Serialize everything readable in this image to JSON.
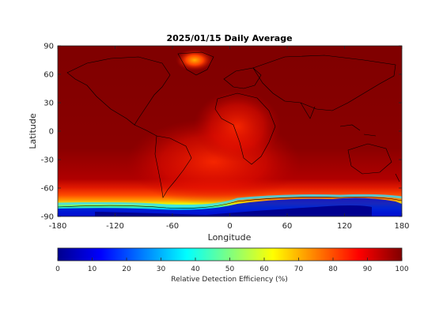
{
  "figure": {
    "title": "2025/01/15 Daily Average",
    "xlabel": "Longitude",
    "ylabel": "Latitude",
    "x_ticks": [
      "-180",
      "-120",
      "-60",
      "0",
      "60",
      "120",
      "180"
    ],
    "y_ticks": [
      "90",
      "60",
      "30",
      "0",
      "-30",
      "-60",
      "-90"
    ]
  },
  "colorbar": {
    "label": "Relative Detection Efficiency (%)",
    "ticks": [
      "0",
      "10",
      "20",
      "30",
      "40",
      "50",
      "60",
      "70",
      "80",
      "90",
      "100"
    ],
    "colormap": "jet"
  },
  "chart_data": {
    "type": "heatmap",
    "title": "2025/01/15 Daily Average",
    "xlabel": "Longitude",
    "ylabel": "Latitude",
    "xlim": [
      -180,
      180
    ],
    "ylim": [
      -90,
      90
    ],
    "colorbar_range": [
      0,
      100
    ],
    "colorbar_label": "Relative Detection Efficiency (%)",
    "overlay": "coastlines",
    "grid": false
  },
  "colors": {
    "ocean_high": "#7f0000",
    "land_high": "#8b0000",
    "axis": "#262626"
  }
}
